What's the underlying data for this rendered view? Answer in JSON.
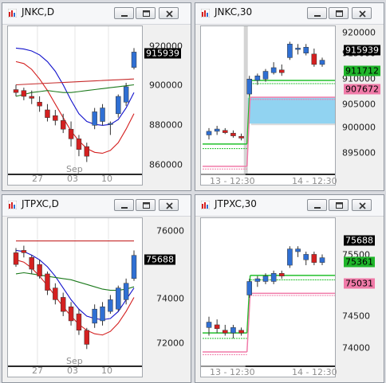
{
  "colors": {
    "up": "#2f6fd3",
    "down": "#d42020",
    "current_tag_bg": "#000000",
    "green_tag_bg": "#1fb52a",
    "pink_tag_bg": "#f07aa8",
    "zone_fill": "#91d3f1",
    "ma_blue": "#1212cc",
    "ma_red": "#d42020",
    "ma_green": "#1c7a1c"
  },
  "windows": [
    {
      "id": "jnkc-daily",
      "title": "JNKC,D",
      "y_axis": [
        "920000",
        "900000",
        "880000",
        "860000"
      ],
      "x_axis": [
        "27",
        "Sep",
        "03",
        "10"
      ],
      "tags": [
        {
          "text": "915939",
          "kind": "current"
        }
      ]
    },
    {
      "id": "jnkc-30",
      "title": "JNKC,30",
      "y_axis": [
        "920000",
        "915000",
        "910000",
        "905000",
        "900000",
        "895000"
      ],
      "x_axis": [
        "13 - 12:30",
        "14 - 12:30"
      ],
      "tags": [
        {
          "text": "915939",
          "kind": "current"
        },
        {
          "text": "911712",
          "kind": "green"
        },
        {
          "text": "907672",
          "kind": "pink"
        }
      ]
    },
    {
      "id": "jtpxc-daily",
      "title": "JTPXC,D",
      "y_axis": [
        "76000",
        "74000",
        "72000"
      ],
      "x_axis": [
        "27",
        "Sep",
        "03",
        "10"
      ],
      "tags": [
        {
          "text": "75688",
          "kind": "current"
        }
      ]
    },
    {
      "id": "jtpxc-30",
      "title": "JTPXC,30",
      "y_axis": [
        "75500",
        "74500",
        "74000"
      ],
      "x_axis": [
        "13 - 12:30",
        "14 - 12:30"
      ],
      "tags": [
        {
          "text": "75688",
          "kind": "current"
        },
        {
          "text": "75361",
          "kind": "green"
        },
        {
          "text": "75031",
          "kind": "pink"
        }
      ]
    }
  ],
  "chart_data": [
    {
      "type": "candlestick",
      "symbol": "JNKC",
      "timeframe": "D",
      "ylim": [
        853000,
        926000
      ],
      "x_labels": [
        "27",
        "Sep",
        "03",
        "10"
      ],
      "candles": [
        {
          "o": 896500,
          "h": 899000,
          "l": 893000,
          "c": 895000
        },
        {
          "o": 896000,
          "h": 897500,
          "l": 891000,
          "c": 893000
        },
        {
          "o": 893000,
          "h": 896000,
          "l": 889000,
          "c": 892000
        },
        {
          "o": 890000,
          "h": 893000,
          "l": 885000,
          "c": 888000
        },
        {
          "o": 886000,
          "h": 889000,
          "l": 880000,
          "c": 882000
        },
        {
          "o": 883000,
          "h": 886000,
          "l": 878000,
          "c": 880500
        },
        {
          "o": 880500,
          "h": 884000,
          "l": 874000,
          "c": 876000
        },
        {
          "o": 876000,
          "h": 880000,
          "l": 867000,
          "c": 871000
        },
        {
          "o": 871000,
          "h": 873000,
          "l": 862000,
          "c": 865500
        },
        {
          "o": 867000,
          "h": 869000,
          "l": 859000,
          "c": 862000
        },
        {
          "o": 878000,
          "h": 887000,
          "l": 876000,
          "c": 885000
        },
        {
          "o": 880000,
          "h": 889000,
          "l": 878000,
          "c": 887000
        },
        {
          "o": 879000,
          "h": 880000,
          "l": 873000,
          "c": 879000
        },
        {
          "o": 884000,
          "h": 894000,
          "l": 882000,
          "c": 893000
        },
        {
          "o": 890000,
          "h": 900000,
          "l": 888000,
          "c": 898000
        },
        {
          "o": 908000,
          "h": 918000,
          "l": 907000,
          "c": 915939
        }
      ],
      "moving_averages": [
        {
          "name": "blue",
          "color": "ma_blue",
          "values": [
            918000,
            917500,
            916500,
            914500,
            911000,
            906000,
            899000,
            891000,
            884000,
            880000,
            878500,
            878000,
            878500,
            881000,
            887000,
            895000
          ]
        },
        {
          "name": "red",
          "color": "ma_red",
          "values": [
            911000,
            910000,
            907000,
            902000,
            896000,
            889000,
            882000,
            875000,
            870000,
            866000,
            864000,
            863500,
            865000,
            869000,
            876000,
            884000
          ]
        },
        {
          "name": "green",
          "color": "ma_green",
          "values": [
            893000,
            894000,
            895000,
            895500,
            896000,
            895500,
            895000,
            895000,
            895500,
            896000,
            896500,
            897000,
            897500,
            898000,
            898500,
            899000
          ]
        },
        {
          "name": "darkred",
          "color": "ma_red",
          "values": [
            899000,
            899200,
            899400,
            899600,
            899800,
            900000,
            900200,
            900400,
            900600,
            900800,
            901000,
            901200,
            901400,
            901600,
            901800,
            902000
          ]
        }
      ]
    },
    {
      "type": "candlestick",
      "symbol": "JNKC",
      "timeframe": "30",
      "ylim": [
        891000,
        922000
      ],
      "x_labels": [
        "13 - 12:30",
        "14 - 12:30"
      ],
      "candles": [
        {
          "o": 899500,
          "h": 901000,
          "l": 898500,
          "c": 900300
        },
        {
          "o": 900300,
          "h": 901500,
          "l": 899500,
          "c": 900800
        },
        {
          "o": 900500,
          "h": 901000,
          "l": 899700,
          "c": 900000
        },
        {
          "o": 899900,
          "h": 900500,
          "l": 898900,
          "c": 899300
        },
        {
          "o": 899200,
          "h": 899800,
          "l": 898300,
          "c": 898800
        },
        {
          "o": 908500,
          "h": 912500,
          "l": 908000,
          "c": 911800
        },
        {
          "o": 911500,
          "h": 913000,
          "l": 910500,
          "c": 912500
        },
        {
          "o": 911800,
          "h": 914000,
          "l": 911200,
          "c": 913500
        },
        {
          "o": 913200,
          "h": 915500,
          "l": 912800,
          "c": 914300
        },
        {
          "o": 913800,
          "h": 915000,
          "l": 912500,
          "c": 913200
        },
        {
          "o": 916500,
          "h": 920000,
          "l": 916000,
          "c": 919500
        },
        {
          "o": 918300,
          "h": 919500,
          "l": 917200,
          "c": 918600
        },
        {
          "o": 917500,
          "h": 919500,
          "l": 917000,
          "c": 918800
        },
        {
          "o": 917300,
          "h": 918500,
          "l": 914500,
          "c": 915000
        },
        {
          "o": 915000,
          "h": 916500,
          "l": 914500,
          "c": 915939
        }
      ],
      "zone": {
        "from": 902000,
        "to": 907672
      },
      "levels": [
        {
          "kind": "green",
          "values": [
            897500,
            896500,
            911500,
            910800
          ]
        },
        {
          "kind": "pink",
          "values": [
            892600,
            892000,
            907800,
            907300
          ]
        }
      ]
    },
    {
      "type": "candlestick",
      "symbol": "JTPXC",
      "timeframe": "D",
      "ylim": [
        71000,
        77000
      ],
      "x_labels": [
        "27",
        "Sep",
        "03",
        "10"
      ],
      "candles": [
        {
          "o": 75800,
          "h": 76000,
          "l": 75200,
          "c": 75300
        },
        {
          "o": 75900,
          "h": 76100,
          "l": 75600,
          "c": 75800
        },
        {
          "o": 75600,
          "h": 75700,
          "l": 74900,
          "c": 75100
        },
        {
          "o": 75300,
          "h": 75500,
          "l": 74700,
          "c": 74800
        },
        {
          "o": 74900,
          "h": 75000,
          "l": 74000,
          "c": 74200
        },
        {
          "o": 74300,
          "h": 74500,
          "l": 73600,
          "c": 73800
        },
        {
          "o": 73900,
          "h": 74100,
          "l": 73100,
          "c": 73300
        },
        {
          "o": 73500,
          "h": 73700,
          "l": 72700,
          "c": 72900
        },
        {
          "o": 73200,
          "h": 73400,
          "l": 72300,
          "c": 72500
        },
        {
          "o": 72500,
          "h": 72600,
          "l": 71700,
          "c": 71900
        },
        {
          "o": 72800,
          "h": 73600,
          "l": 72600,
          "c": 73400
        },
        {
          "o": 72900,
          "h": 73700,
          "l": 72700,
          "c": 73500
        },
        {
          "o": 73300,
          "h": 74000,
          "l": 73200,
          "c": 73800
        },
        {
          "o": 73400,
          "h": 74400,
          "l": 73300,
          "c": 74300
        },
        {
          "o": 73800,
          "h": 74700,
          "l": 73600,
          "c": 74500
        },
        {
          "o": 74700,
          "h": 75900,
          "l": 74600,
          "c": 75688
        }
      ],
      "moving_averages": [
        {
          "name": "blue",
          "color": "ma_blue",
          "values": [
            75900,
            75850,
            75700,
            75500,
            75200,
            74800,
            74300,
            73800,
            73400,
            73100,
            73000,
            72950,
            73000,
            73300,
            73800,
            74300
          ]
        },
        {
          "name": "red",
          "color": "ma_red",
          "values": [
            75500,
            75400,
            75150,
            74800,
            74400,
            73950,
            73500,
            73100,
            72750,
            72500,
            72350,
            72300,
            72450,
            72800,
            73300,
            73900
          ]
        },
        {
          "name": "green",
          "color": "ma_green",
          "values": [
            74900,
            74950,
            74900,
            74850,
            74800,
            74750,
            74700,
            74650,
            74550,
            74450,
            74350,
            74250,
            74200,
            74200,
            74250,
            74350
          ]
        },
        {
          "name": "darkred",
          "color": "ma_red",
          "values": [
            76300,
            76300,
            76300,
            76300,
            76300,
            76300,
            76300,
            76300,
            76300,
            76300,
            76300,
            76300,
            76300,
            76300,
            76300,
            76300
          ]
        }
      ]
    },
    {
      "type": "candlestick",
      "symbol": "JTPXC",
      "timeframe": "30",
      "ylim": [
        73700,
        76300
      ],
      "x_labels": [
        "13 - 12:30",
        "14 - 12:30"
      ],
      "candles": [
        {
          "o": 74400,
          "h": 74600,
          "l": 74250,
          "c": 74500
        },
        {
          "o": 74450,
          "h": 74550,
          "l": 74300,
          "c": 74380
        },
        {
          "o": 74350,
          "h": 74450,
          "l": 74250,
          "c": 74300
        },
        {
          "o": 74300,
          "h": 74450,
          "l": 74200,
          "c": 74400
        },
        {
          "o": 74350,
          "h": 74400,
          "l": 74250,
          "c": 74300
        },
        {
          "o": 75000,
          "h": 75300,
          "l": 74950,
          "c": 75250
        },
        {
          "o": 75250,
          "h": 75350,
          "l": 75150,
          "c": 75300
        },
        {
          "o": 75250,
          "h": 75400,
          "l": 75200,
          "c": 75350
        },
        {
          "o": 75250,
          "h": 75450,
          "l": 75200,
          "c": 75400
        },
        {
          "o": 75400,
          "h": 75450,
          "l": 75300,
          "c": 75350
        },
        {
          "o": 75550,
          "h": 75900,
          "l": 75500,
          "c": 75850
        },
        {
          "o": 75800,
          "h": 75900,
          "l": 75700,
          "c": 75850
        },
        {
          "o": 75650,
          "h": 75800,
          "l": 75550,
          "c": 75750
        },
        {
          "o": 75750,
          "h": 75800,
          "l": 75550,
          "c": 75600
        },
        {
          "o": 75600,
          "h": 75750,
          "l": 75550,
          "c": 75688
        }
      ],
      "levels": [
        {
          "kind": "green",
          "values": [
            74300,
            74200,
            75361,
            75280
          ]
        },
        {
          "kind": "pink",
          "values": [
            73950,
            73900,
            75031,
            74990
          ]
        }
      ]
    }
  ]
}
